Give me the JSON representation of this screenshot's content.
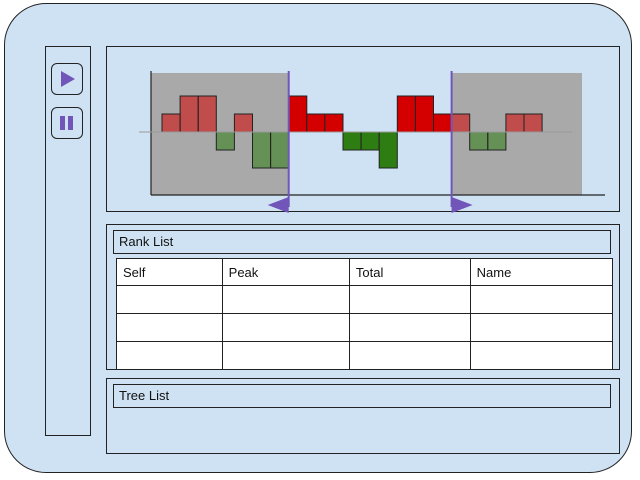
{
  "toolbar": {
    "play_icon": "play-icon",
    "pause_icon": "pause-icon",
    "accent_color": "#7155b8"
  },
  "timeline": {
    "colors": {
      "positive": "#d40000",
      "negative": "#2e7d12",
      "shaded_region": "#a9a9a9",
      "marker": "#7155b8"
    },
    "bars": [
      {
        "value": 1,
        "sign": "positive",
        "dimmed": true
      },
      {
        "value": 2,
        "sign": "positive",
        "dimmed": true
      },
      {
        "value": 2,
        "sign": "positive",
        "dimmed": true
      },
      {
        "value": -1,
        "sign": "negative",
        "dimmed": true
      },
      {
        "value": 1,
        "sign": "positive",
        "dimmed": true
      },
      {
        "value": -2,
        "sign": "negative",
        "dimmed": true
      },
      {
        "value": -2,
        "sign": "negative",
        "dimmed": true
      },
      {
        "value": 2,
        "sign": "positive",
        "dimmed": false
      },
      {
        "value": 1,
        "sign": "positive",
        "dimmed": false
      },
      {
        "value": 1,
        "sign": "positive",
        "dimmed": false
      },
      {
        "value": -1,
        "sign": "negative",
        "dimmed": false
      },
      {
        "value": -1,
        "sign": "negative",
        "dimmed": false
      },
      {
        "value": -2,
        "sign": "negative",
        "dimmed": false
      },
      {
        "value": 2,
        "sign": "positive",
        "dimmed": false
      },
      {
        "value": 2,
        "sign": "positive",
        "dimmed": false
      },
      {
        "value": 1,
        "sign": "positive",
        "dimmed": false
      },
      {
        "value": 1,
        "sign": "positive",
        "dimmed": true
      },
      {
        "value": -1,
        "sign": "negative",
        "dimmed": true
      },
      {
        "value": -1,
        "sign": "negative",
        "dimmed": true
      },
      {
        "value": 1,
        "sign": "positive",
        "dimmed": true
      },
      {
        "value": 1,
        "sign": "positive",
        "dimmed": true
      }
    ],
    "selection": {
      "start_index": 7,
      "end_index": 16
    }
  },
  "rank_list": {
    "title": "Rank List",
    "columns": [
      "Self",
      "Peak",
      "Total",
      "Name"
    ],
    "rows": [
      [
        "",
        "",
        "",
        ""
      ],
      [
        "",
        "",
        "",
        ""
      ],
      [
        "",
        "",
        "",
        ""
      ]
    ]
  },
  "tree_list": {
    "title": "Tree List"
  }
}
